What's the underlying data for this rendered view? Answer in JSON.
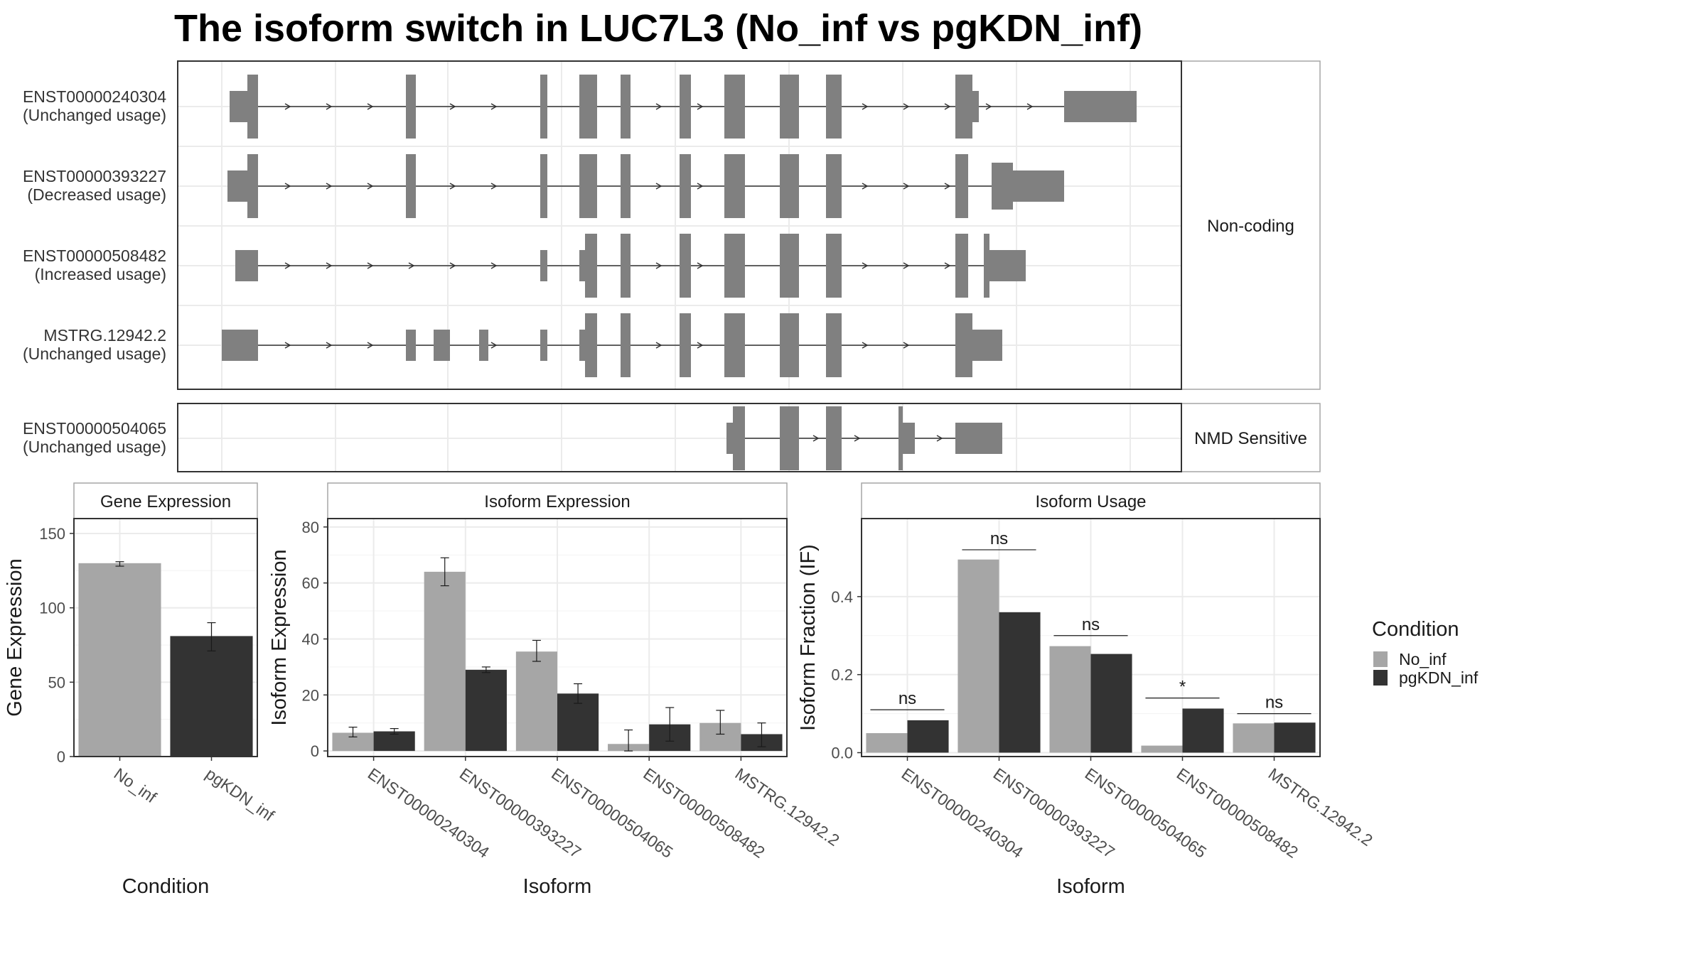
{
  "title": "The isoform switch in LUC7L3 (No_inf vs pgKDN_inf)",
  "colors": {
    "No_inf": "#a6a6a6",
    "pgKDN_inf": "#333333",
    "exon": "#808080",
    "grid": "#ebebeb",
    "panel_border": "#333333",
    "strip_border": "#a6a6a6"
  },
  "structure": {
    "facets": [
      {
        "label": "Non-coding",
        "tracks": [
          {
            "id": "ENST00000240304",
            "usage": "(Unchanged usage)"
          },
          {
            "id": "ENST00000393227",
            "usage": "(Decreased usage)"
          },
          {
            "id": "ENST00000508482",
            "usage": "(Increased usage)"
          },
          {
            "id": "MSTRG.12942.2",
            "usage": "(Unchanged usage)"
          }
        ]
      },
      {
        "label": "NMD Sensitive",
        "tracks": [
          {
            "id": "ENST00000504065",
            "usage": "(Unchanged usage)"
          }
        ]
      }
    ]
  },
  "legend": {
    "title": "Condition",
    "entries": [
      "No_inf",
      "pgKDN_inf"
    ]
  },
  "chart_data": [
    {
      "type": "bar",
      "title": "Gene Expression",
      "xlabel": "Condition",
      "ylabel": "Gene Expression",
      "ylim": [
        0,
        160
      ],
      "yticks": [
        0,
        50,
        100,
        150
      ],
      "categories": [
        "No_inf",
        "pgKDN_inf"
      ],
      "values": [
        130,
        81
      ],
      "errors": [
        [
          128,
          131
        ],
        [
          71,
          90
        ]
      ],
      "colors": [
        "#a6a6a6",
        "#333333"
      ]
    },
    {
      "type": "bar",
      "title": "Isoform Expression",
      "xlabel": "Isoform",
      "ylabel": "Isoform Expression",
      "ylim": [
        -2,
        83
      ],
      "yticks": [
        0,
        20,
        40,
        60,
        80
      ],
      "categories": [
        "ENST00000240304",
        "ENST00000393227",
        "ENST00000504065",
        "ENST00000508482",
        "MSTRG.12942.2"
      ],
      "series": [
        {
          "name": "No_inf",
          "values": [
            6.5,
            64,
            35.5,
            2.5,
            10
          ],
          "errors": [
            [
              5,
              8.5
            ],
            [
              59,
              69
            ],
            [
              32,
              39.5
            ],
            [
              0,
              7.5
            ],
            [
              6,
              14.5
            ]
          ]
        },
        {
          "name": "pgKDN_inf",
          "values": [
            7,
            29,
            20.5,
            9.5,
            6
          ],
          "errors": [
            [
              6,
              8
            ],
            [
              28,
              30
            ],
            [
              17,
              24
            ],
            [
              3.5,
              15.5
            ],
            [
              1.5,
              10
            ]
          ]
        }
      ]
    },
    {
      "type": "bar",
      "title": "Isoform Usage",
      "xlabel": "Isoform",
      "ylabel": "Isoform Fraction (IF)",
      "ylim": [
        -0.01,
        0.6
      ],
      "yticks": [
        "0.0",
        "0.2",
        "0.4"
      ],
      "categories": [
        "ENST00000240304",
        "ENST00000393227",
        "ENST00000504065",
        "ENST00000508482",
        "MSTRG.12942.2"
      ],
      "series": [
        {
          "name": "No_inf",
          "values": [
            0.05,
            0.495,
            0.273,
            0.018,
            0.075
          ]
        },
        {
          "name": "pgKDN_inf",
          "values": [
            0.083,
            0.36,
            0.253,
            0.113,
            0.077
          ]
        }
      ],
      "significance": [
        "ns",
        "ns",
        "ns",
        "*",
        "ns"
      ],
      "significance_levels": [
        0.11,
        0.52,
        0.3,
        0.14,
        0.1
      ]
    }
  ]
}
